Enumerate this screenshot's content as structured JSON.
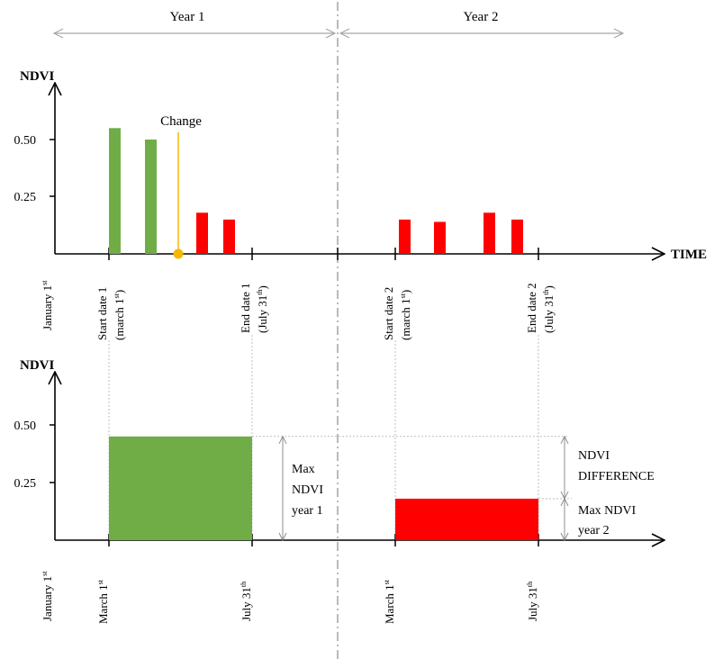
{
  "header": {
    "year1": "Year 1",
    "year2": "Year 2"
  },
  "top_chart": {
    "y_axis_label": "NDVI",
    "x_axis_label": "TIME",
    "y_ticks": [
      "0.50",
      "0.25"
    ],
    "change_label": "Change",
    "x_labels": {
      "jan": "January 1",
      "jan_sup": "st",
      "start1": "Start date 1",
      "start1_sub": "(march 1",
      "start1_sub_sup": "st",
      "start1_sub_end": ")",
      "end1": "End date 1",
      "end1_sub": "(July 31",
      "end1_sub_sup": "th",
      "end1_sub_end": ")",
      "start2": "Start date 2",
      "start2_sub": "(march 1",
      "start2_sub_sup": "st",
      "start2_sub_end": ")",
      "end2": "End date 2",
      "end2_sub": "(July 31",
      "end2_sub_sup": "th",
      "end2_sub_end": ")"
    },
    "bars": [
      {
        "value": 0.55,
        "color": "#70ad47"
      },
      {
        "value": 0.5,
        "color": "#70ad47"
      },
      {
        "value": 0.18,
        "color": "#ff0000"
      },
      {
        "value": 0.15,
        "color": "#ff0000"
      },
      {
        "value": 0.15,
        "color": "#ff0000"
      },
      {
        "value": 0.14,
        "color": "#ff0000"
      },
      {
        "value": 0.18,
        "color": "#ff0000"
      },
      {
        "value": 0.15,
        "color": "#ff0000"
      }
    ]
  },
  "bottom_chart": {
    "y_axis_label": "NDVI",
    "y_ticks": [
      "0.50",
      "0.25"
    ],
    "max_year1_value": 0.45,
    "max_year2_value": 0.18,
    "max1_label": [
      "Max",
      "NDVI",
      "year 1"
    ],
    "diff_label": [
      "NDVI",
      "DIFFERENCE"
    ],
    "max2_label": [
      "Max NDVI",
      "year 2"
    ],
    "x_labels": {
      "jan": "January 1",
      "jan_sup": "st",
      "march1": "March 1",
      "march1_sup": "st",
      "july1": "July 31",
      "july1_sup": "th",
      "march2": "March 1",
      "march2_sup": "st",
      "july2": "July 31",
      "july2_sup": "th"
    }
  },
  "colors": {
    "green": "#70ad47",
    "red": "#ff0000",
    "change_line": "#f5b800",
    "arrow_gray": "#a6a6a6"
  }
}
